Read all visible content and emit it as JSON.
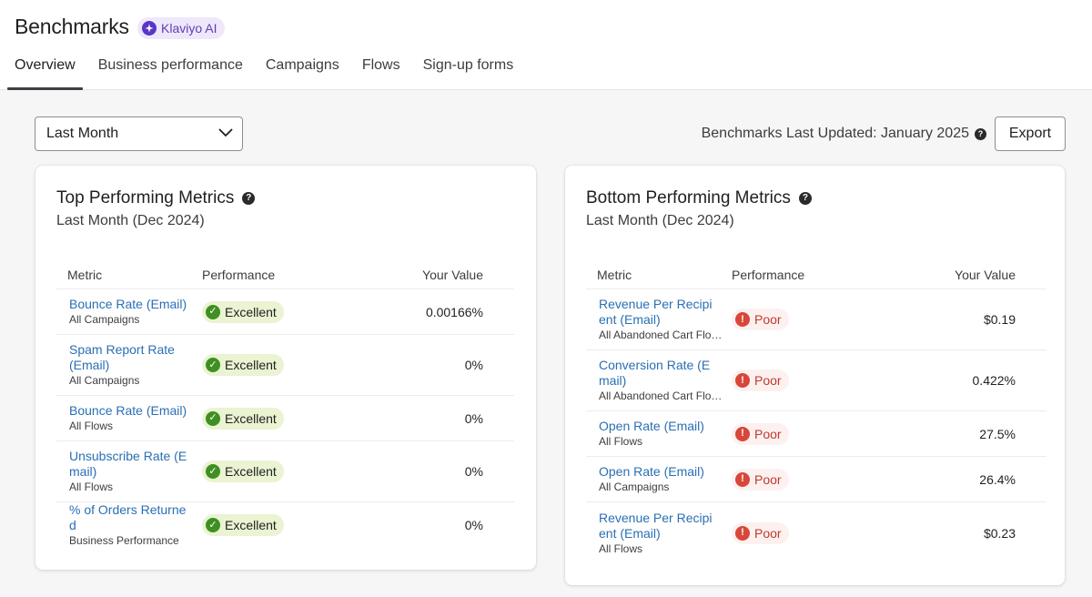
{
  "header": {
    "title": "Benchmarks",
    "ai_badge": "Klaviyo AI",
    "tabs": [
      {
        "label": "Overview",
        "active": true
      },
      {
        "label": "Business performance",
        "active": false
      },
      {
        "label": "Campaigns",
        "active": false
      },
      {
        "label": "Flows",
        "active": false
      },
      {
        "label": "Sign-up forms",
        "active": false
      }
    ]
  },
  "toolbar": {
    "period_selected": "Last Month",
    "updated_text": "Benchmarks Last Updated: January 2025",
    "export_label": "Export"
  },
  "columns": {
    "metric": "Metric",
    "performance": "Performance",
    "value": "Your Value"
  },
  "top": {
    "title": "Top Performing Metrics",
    "subtitle": "Last Month (Dec 2024)",
    "rows": [
      {
        "name": "Bounce Rate (Email)",
        "scope": "All Campaigns",
        "performance": "Excellent",
        "value": "0.00166%"
      },
      {
        "name": "Spam Report Rate (Email)",
        "scope": "All Campaigns",
        "performance": "Excellent",
        "value": "0%"
      },
      {
        "name": "Bounce Rate (Email)",
        "scope": "All Flows",
        "performance": "Excellent",
        "value": "0%"
      },
      {
        "name": "Unsubscribe Rate (Email)",
        "scope": "All Flows",
        "performance": "Excellent",
        "value": "0%"
      },
      {
        "name": "% of Orders Returned",
        "scope": "Business Performance",
        "performance": "Excellent",
        "value": "0%"
      }
    ]
  },
  "bottom": {
    "title": "Bottom Performing Metrics",
    "subtitle": "Last Month (Dec 2024)",
    "rows": [
      {
        "name": "Revenue Per Recipient (Email)",
        "scope": "All Abandoned Cart Flo…",
        "performance": "Poor",
        "value": "$0.19"
      },
      {
        "name": "Conversion Rate (Email)",
        "scope": "All Abandoned Cart Flo…",
        "performance": "Poor",
        "value": "0.422%"
      },
      {
        "name": "Open Rate (Email)",
        "scope": "All Flows",
        "performance": "Poor",
        "value": "27.5%"
      },
      {
        "name": "Open Rate (Email)",
        "scope": "All Campaigns",
        "performance": "Poor",
        "value": "26.4%"
      },
      {
        "name": "Revenue Per Recipient (Email)",
        "scope": "All Flows",
        "performance": "Poor",
        "value": "$0.23"
      }
    ]
  },
  "colors": {
    "link": "#2a6fb4",
    "excellent_bg": "#eaf3d2",
    "excellent_icon": "#3f8f22",
    "poor_bg": "#fdf1f0",
    "poor_text": "#c0392b",
    "brand_ai": "#5a36c7"
  },
  "icons": {
    "ai": "sparkle-icon",
    "help": "question-circle-icon",
    "dropdown": "chevron-down-icon",
    "excellent": "check-circle-icon",
    "poor": "exclamation-circle-icon"
  }
}
